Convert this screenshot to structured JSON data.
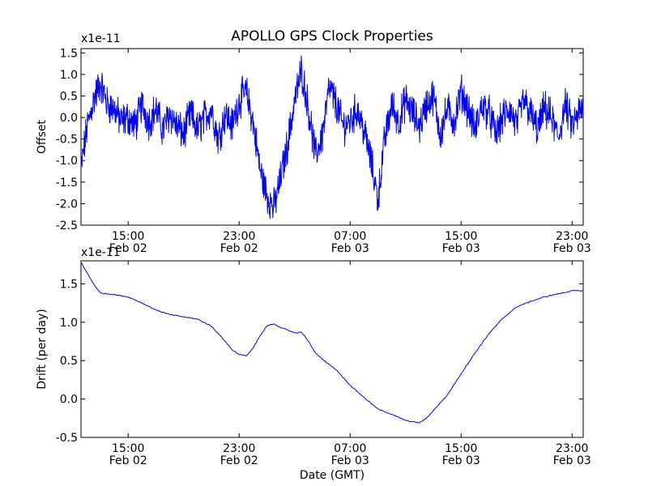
{
  "chart_data": {
    "title": "APOLLO GPS Clock Properties",
    "x_axis_label": "Date (GMT)",
    "x_ticks": [
      {
        "time": "15:00",
        "date": "Feb 02",
        "hours": 15
      },
      {
        "time": "23:00",
        "date": "Feb 02",
        "hours": 23
      },
      {
        "time": "07:00",
        "date": "Feb 03",
        "hours": 31
      },
      {
        "time": "15:00",
        "date": "Feb 03",
        "hours": 39
      },
      {
        "time": "23:00",
        "date": "Feb 03",
        "hours": 47
      }
    ],
    "xlim_hours": [
      11.6,
      47.8
    ],
    "charts": [
      {
        "type": "line",
        "ylabel": "Offset",
        "scale_label": "x1e-11",
        "ylim": [
          -2.5,
          1.6
        ],
        "y_ticks": [
          1.5,
          1.0,
          0.5,
          0.0,
          -0.5,
          -1.0,
          -1.5,
          -2.0,
          -2.5
        ],
        "y_tick_labels": [
          "1.5",
          "1.0",
          "0.5",
          "0.0",
          "-0.5",
          "-1.0",
          "-1.5",
          "-2.0",
          "-2.5"
        ],
        "line_color": "#0000ff",
        "series": [
          {
            "x": [
              11.6,
              12.0,
              12.5,
              13.0,
              13.5,
              14.0,
              14.5,
              15.0,
              15.5,
              16.0,
              16.5,
              17.0,
              17.5,
              18.0,
              18.5,
              19.0,
              19.5,
              20.0,
              20.5,
              21.0,
              21.5,
              22.0,
              22.5,
              23.0,
              23.5,
              24.0,
              24.5,
              25.0,
              25.5,
              26.0,
              26.5,
              27.0,
              27.5,
              28.0,
              28.5,
              29.0,
              29.5,
              30.0,
              30.5,
              31.0,
              31.5,
              32.0,
              32.5,
              33.0,
              33.5,
              34.0,
              34.5,
              35.0,
              35.5,
              36.0,
              36.5,
              37.0,
              37.5,
              38.0,
              38.5,
              39.0,
              39.5,
              40.0,
              40.5,
              41.0,
              41.5,
              42.0,
              42.5,
              43.0,
              43.5,
              44.0,
              44.5,
              45.0,
              45.5,
              46.0,
              46.5,
              47.0,
              47.5,
              47.8
            ],
            "y": [
              -1.2,
              -0.3,
              0.4,
              0.8,
              0.3,
              0.2,
              -0.1,
              0.0,
              -0.2,
              0.3,
              -0.1,
              0.2,
              -0.3,
              0.1,
              -0.2,
              -0.4,
              0.1,
              -0.3,
              0.0,
              0.2,
              -0.5,
              0.1,
              -0.2,
              0.4,
              0.6,
              -0.1,
              -1.2,
              -1.8,
              -2.1,
              -1.4,
              -0.6,
              0.4,
              1.1,
              0.2,
              -0.9,
              -0.4,
              0.7,
              0.3,
              -0.2,
              -0.1,
              0.2,
              -0.3,
              -1.0,
              -1.9,
              -0.5,
              0.3,
              -0.1,
              0.4,
              0.1,
              -0.2,
              0.3,
              0.5,
              -0.4,
              0.2,
              -0.1,
              0.6,
              0.2,
              -0.3,
              0.3,
              0.1,
              -0.4,
              0.0,
              0.2,
              -0.2,
              0.4,
              0.1,
              -0.3,
              0.2,
              0.0,
              -0.5,
              0.3,
              -0.2,
              0.1,
              0.2
            ]
          }
        ]
      },
      {
        "type": "line",
        "ylabel": "Drift (per day)",
        "scale_label": "x1e-11",
        "ylim": [
          -0.5,
          1.8
        ],
        "y_ticks": [
          1.5,
          1.0,
          0.5,
          0.0,
          -0.5
        ],
        "y_tick_labels": [
          "1.5",
          "1.0",
          "0.5",
          "0.0",
          "-0.5"
        ],
        "line_color": "#0000ff",
        "series": [
          {
            "x": [
              11.6,
              12.5,
              13.0,
              14.0,
              15.0,
              16.0,
              17.0,
              18.0,
              19.0,
              20.0,
              21.0,
              22.0,
              22.5,
              23.0,
              23.5,
              24.0,
              24.5,
              25.0,
              25.5,
              26.0,
              26.5,
              27.0,
              27.5,
              28.0,
              28.5,
              29.0,
              29.5,
              30.0,
              31.0,
              32.0,
              33.0,
              34.0,
              35.0,
              36.0,
              36.5,
              37.0,
              37.5,
              38.0,
              39.0,
              40.0,
              41.0,
              42.0,
              43.0,
              44.0,
              45.0,
              46.0,
              47.0,
              47.8
            ],
            "y": [
              1.78,
              1.5,
              1.38,
              1.36,
              1.33,
              1.25,
              1.16,
              1.1,
              1.07,
              1.04,
              0.95,
              0.75,
              0.64,
              0.58,
              0.56,
              0.66,
              0.82,
              0.95,
              0.98,
              0.93,
              0.9,
              0.86,
              0.87,
              0.75,
              0.6,
              0.52,
              0.45,
              0.38,
              0.18,
              0.02,
              -0.13,
              -0.2,
              -0.28,
              -0.31,
              -0.25,
              -0.15,
              -0.05,
              0.05,
              0.33,
              0.6,
              0.85,
              1.05,
              1.2,
              1.27,
              1.33,
              1.37,
              1.41,
              1.41
            ]
          }
        ]
      }
    ]
  }
}
